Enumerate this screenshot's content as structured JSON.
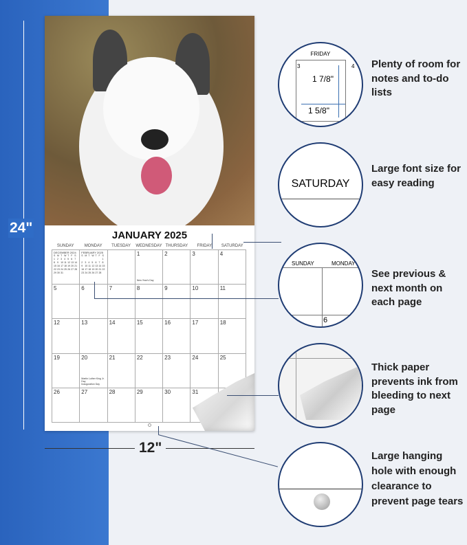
{
  "dimensions": {
    "height": "24\"",
    "width": "12\""
  },
  "calendar": {
    "title": "JANUARY 2025",
    "weekdays": [
      "SUNDAY",
      "MONDAY",
      "TUESDAY",
      "WEDNESDAY",
      "THURSDAY",
      "FRIDAY",
      "SATURDAY"
    ],
    "days": [
      "",
      "",
      "",
      "1",
      "2",
      "3",
      "4",
      "5",
      "6",
      "7",
      "8",
      "9",
      "10",
      "11",
      "12",
      "13",
      "14",
      "15",
      "16",
      "17",
      "18",
      "19",
      "20",
      "21",
      "22",
      "23",
      "24",
      "25",
      "26",
      "27",
      "28",
      "29",
      "30",
      "31",
      ""
    ],
    "holidays": {
      "1": "New Year's Day",
      "20": "Martin Luther King Jr. Day\nInauguration Day"
    },
    "prev_month": {
      "name": "DECEMBER 2024",
      "start": 0,
      "length": 31
    },
    "next_month": {
      "name": "FEBRUARY 2025",
      "start": 6,
      "length": 28
    },
    "mini_weekdays": [
      "S",
      "M",
      "T",
      "W",
      "T",
      "F",
      "S"
    ]
  },
  "features": [
    {
      "text": "Plenty of room for notes and to-do lists",
      "detail": {
        "day_header": "FRIDAY",
        "day": "3",
        "next_day": "4",
        "height": "1 7/8\"",
        "width": "1 5/8\""
      }
    },
    {
      "text": "Large font size for easy reading",
      "detail": {
        "label": "SATURDAY"
      }
    },
    {
      "text": "See previous & next month on each page",
      "detail": {
        "sun": "SUNDAY",
        "mon": "MONDAY",
        "day": "6"
      }
    },
    {
      "text": "Thick paper prevents ink from bleeding to next page"
    },
    {
      "text": "Large hanging hole with enough clearance to prevent page tears"
    }
  ],
  "colors": {
    "band": "#2a63bd",
    "circle_border": "#1f3c73"
  }
}
